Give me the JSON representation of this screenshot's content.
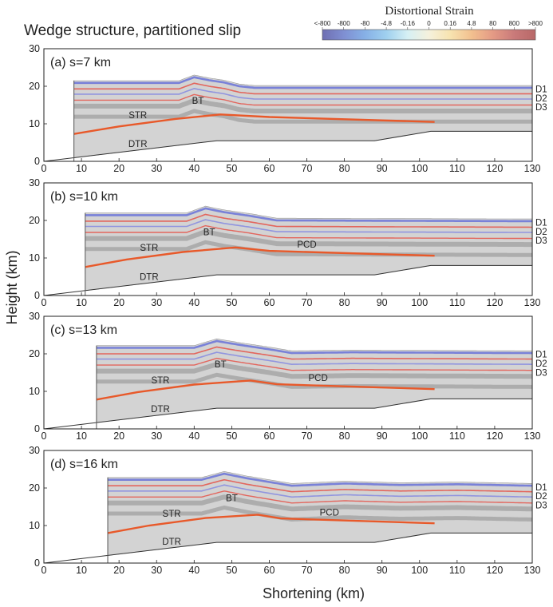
{
  "figure": {
    "title": "Wedge structure, partitioned slip",
    "xlabel": "Shortening (km)",
    "ylabel": "Height (km)",
    "colorbar": {
      "title": "Distortional Strain",
      "tick_labels": [
        "<-800",
        "-800",
        "-80",
        "-4.8",
        "-0.16",
        "0",
        "0.16",
        "4.8",
        "80",
        "800",
        ">800"
      ],
      "colors": [
        "#6f6fb2",
        "#7f8fd2",
        "#86b0e6",
        "#9fd0ef",
        "#d6f0f4",
        "#f5f1dc",
        "#f7e3b0",
        "#f2c08f",
        "#e49a85",
        "#c97a7a",
        "#b86868"
      ]
    }
  },
  "colors": {
    "sediment_grey": "#d3d3d3",
    "dark_band": "#a9a9a9",
    "top_layer": "#6f78d8",
    "red_layer": "#e45a50",
    "decollement": "#e8592a",
    "basement_line": "#333333"
  },
  "chart_data": [
    {
      "type": "line",
      "panel_label": "(a) s=7 km",
      "shortening_km": 7,
      "xlim": [
        0,
        130
      ],
      "ylim": [
        0,
        30
      ],
      "xticks": [
        0,
        10,
        20,
        30,
        40,
        50,
        60,
        70,
        80,
        90,
        100,
        110,
        120,
        130
      ],
      "yticks": [
        0,
        10,
        20,
        30
      ],
      "annotations": [
        "BT",
        "STR",
        "DTR"
      ],
      "layer_labels": [
        "D1",
        "D2",
        "D3"
      ],
      "series": [
        {
          "role": "basement",
          "x": [
            0,
            46,
            88,
            103,
            130
          ],
          "y": [
            0,
            5.5,
            5.5,
            8,
            8
          ]
        },
        {
          "role": "surface",
          "x": [
            8,
            36,
            40,
            44,
            48,
            52,
            56,
            130
          ],
          "y": [
            21.5,
            21.5,
            23,
            22.2,
            21.6,
            20.6,
            20.2,
            20.2
          ]
        },
        {
          "role": "decollement",
          "x": [
            8,
            20,
            35,
            47,
            60,
            104
          ],
          "y": [
            7.3,
            9.3,
            11.3,
            12.5,
            11.8,
            10.5
          ]
        }
      ]
    },
    {
      "type": "line",
      "panel_label": "(b) s=10 km",
      "shortening_km": 10,
      "xlim": [
        0,
        130
      ],
      "ylim": [
        0,
        30
      ],
      "xticks": [
        0,
        10,
        20,
        30,
        40,
        50,
        60,
        70,
        80,
        90,
        100,
        110,
        120,
        130
      ],
      "yticks": [
        0,
        10,
        20,
        30
      ],
      "annotations": [
        "BT",
        "STR",
        "PCD",
        "DTR"
      ],
      "layer_labels": [
        "D1",
        "D2",
        "D3"
      ],
      "series": [
        {
          "role": "basement",
          "x": [
            0,
            46,
            88,
            103,
            130
          ],
          "y": [
            0,
            5.5,
            5.5,
            8,
            8
          ]
        },
        {
          "role": "surface",
          "x": [
            11,
            38,
            43,
            48,
            55,
            62,
            130
          ],
          "y": [
            22,
            22,
            23.8,
            22.8,
            21.8,
            20.6,
            20.4
          ]
        },
        {
          "role": "decollement",
          "x": [
            11,
            22,
            37,
            51,
            60,
            104
          ],
          "y": [
            7.6,
            9.6,
            11.6,
            12.8,
            11.9,
            10.6
          ]
        }
      ]
    },
    {
      "type": "line",
      "panel_label": "(c) s=13 km",
      "shortening_km": 13,
      "xlim": [
        0,
        130
      ],
      "ylim": [
        0,
        30
      ],
      "xticks": [
        0,
        10,
        20,
        30,
        40,
        50,
        60,
        70,
        80,
        90,
        100,
        110,
        120,
        130
      ],
      "yticks": [
        0,
        10,
        20,
        30
      ],
      "annotations": [
        "BT",
        "STR",
        "PCD",
        "DTR"
      ],
      "layer_labels": [
        "D1",
        "D2",
        "D3"
      ],
      "series": [
        {
          "role": "basement",
          "x": [
            0,
            46,
            88,
            103,
            130
          ],
          "y": [
            0,
            5.5,
            5.5,
            8,
            8
          ]
        },
        {
          "role": "surface",
          "x": [
            14,
            40,
            46,
            52,
            60,
            66,
            82,
            130
          ],
          "y": [
            22.2,
            22.2,
            24,
            23,
            21.8,
            20.8,
            21,
            20.8
          ]
        },
        {
          "role": "decollement",
          "x": [
            14,
            25,
            40,
            55,
            62,
            104
          ],
          "y": [
            7.8,
            9.8,
            11.8,
            12.9,
            11.9,
            10.6
          ]
        }
      ]
    },
    {
      "type": "line",
      "panel_label": "(d) s=16 km",
      "shortening_km": 16,
      "xlim": [
        0,
        130
      ],
      "ylim": [
        0,
        30
      ],
      "xticks": [
        0,
        10,
        20,
        30,
        40,
        50,
        60,
        70,
        80,
        90,
        100,
        110,
        120,
        130
      ],
      "yticks": [
        0,
        10,
        20,
        30
      ],
      "annotations": [
        "BT",
        "STR",
        "PCD",
        "DTR"
      ],
      "layer_labels": [
        "D1",
        "D2",
        "D3"
      ],
      "series": [
        {
          "role": "basement",
          "x": [
            0,
            46,
            88,
            103,
            130
          ],
          "y": [
            0,
            5.5,
            5.5,
            8,
            8
          ]
        },
        {
          "role": "surface",
          "x": [
            17,
            42,
            48,
            54,
            60,
            66,
            80,
            95,
            110,
            130
          ],
          "y": [
            22.8,
            22.8,
            24.4,
            23.2,
            22.2,
            21.2,
            21.8,
            21.4,
            21.6,
            21.2
          ]
        },
        {
          "role": "decollement",
          "x": [
            17,
            28,
            43,
            57,
            63,
            104
          ],
          "y": [
            8.0,
            10.0,
            12.0,
            12.9,
            11.9,
            10.6
          ]
        }
      ]
    }
  ]
}
